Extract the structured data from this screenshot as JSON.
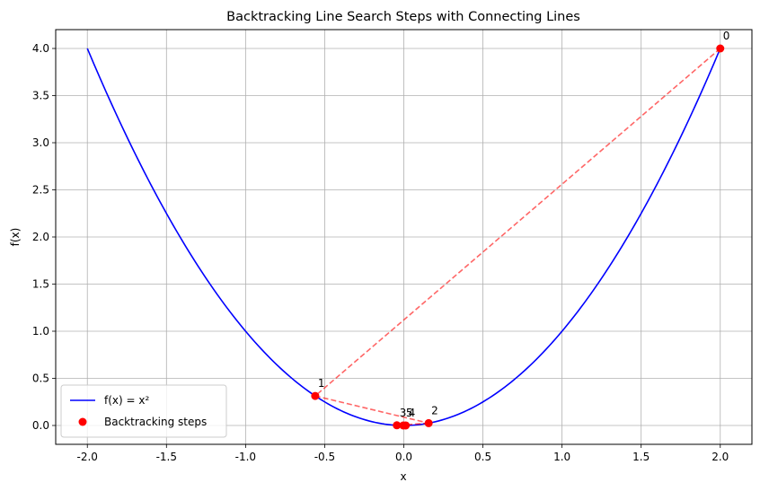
{
  "chart_data": {
    "type": "line",
    "title": "Backtracking Line Search Steps with Connecting Lines",
    "xlabel": "x",
    "ylabel": "f(x)",
    "xlim": [
      -2.2,
      2.2
    ],
    "ylim": [
      -0.2,
      4.2
    ],
    "xticks": [
      -2.0,
      -1.5,
      -1.0,
      -0.5,
      0.0,
      0.5,
      1.0,
      1.5,
      2.0
    ],
    "yticks": [
      0.0,
      0.5,
      1.0,
      1.5,
      2.0,
      2.5,
      3.0,
      3.5,
      4.0
    ],
    "grid": true,
    "legend_position": "lower-left",
    "series": [
      {
        "name": "f(x) = x²",
        "kind": "curve",
        "function": "x^2",
        "x_range": [
          -2.0,
          2.0
        ],
        "color": "#0000ff"
      },
      {
        "name": "Backtracking steps",
        "kind": "scatter",
        "color": "#ff0000",
        "points": [
          {
            "label": "0",
            "x": 2.0,
            "y": 4.0
          },
          {
            "label": "1",
            "x": -0.56,
            "y": 0.3136
          },
          {
            "label": "2",
            "x": 0.157,
            "y": 0.0246
          },
          {
            "label": "3",
            "x": -0.044,
            "y": 0.0019
          },
          {
            "label": "4",
            "x": 0.0123,
            "y": 0.0002
          },
          {
            "label": "5",
            "x": -0.0034,
            "y": 0.0
          }
        ]
      }
    ],
    "connecting_lines": {
      "color": "#ff0000",
      "style": "dashed",
      "opacity": 0.6
    }
  }
}
